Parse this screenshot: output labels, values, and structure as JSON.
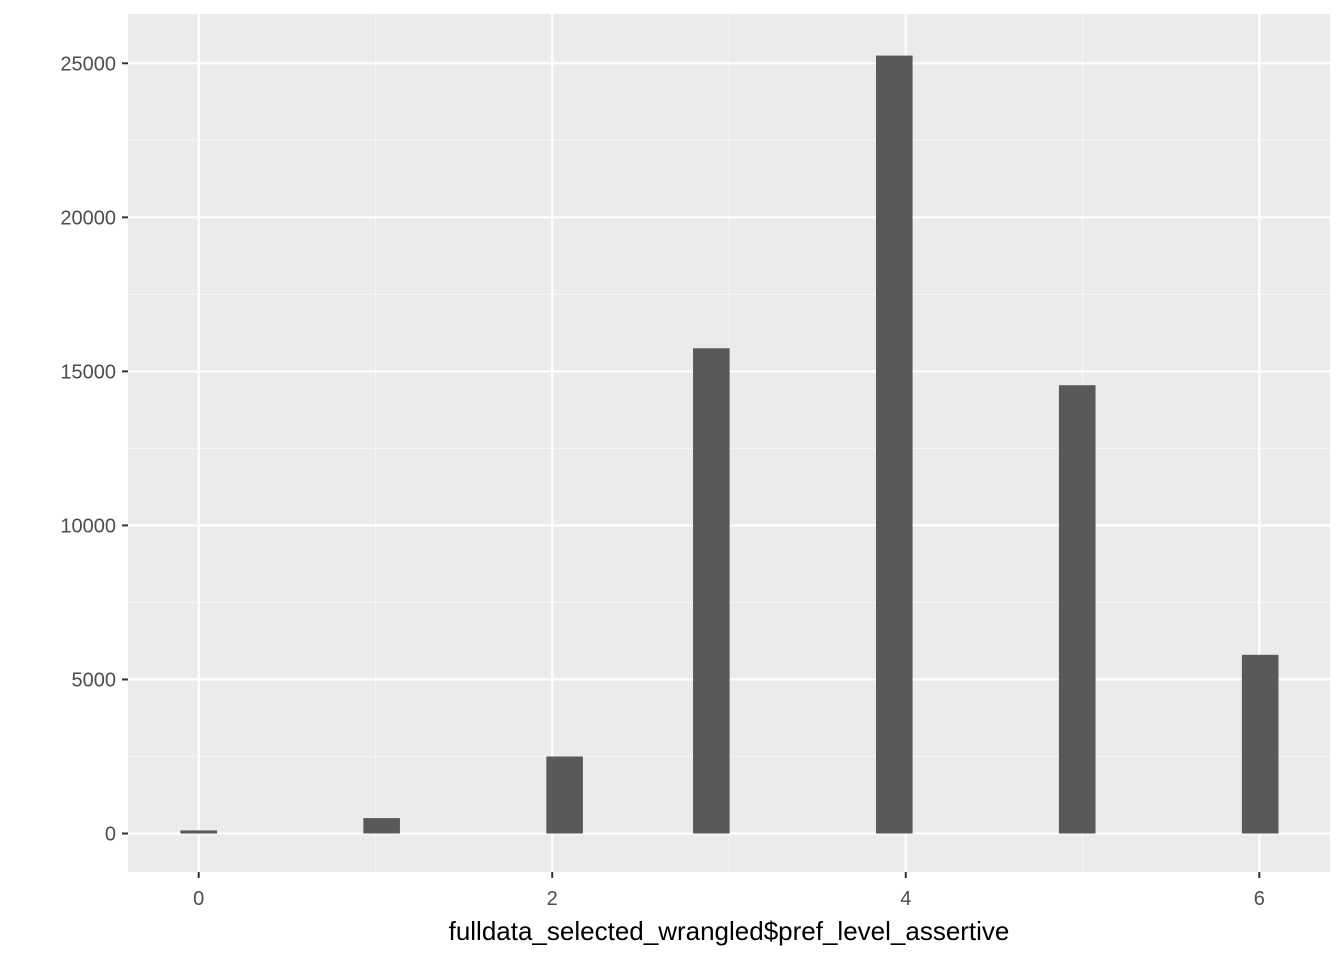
{
  "chart_data": {
    "type": "bar",
    "title": "",
    "xlabel": "fulldata_selected_wrangled$pref_level_assertive",
    "ylabel": "",
    "x_ticks": [
      0,
      2,
      4,
      6
    ],
    "x_tick_labels": [
      "0",
      "2",
      "4",
      "6"
    ],
    "y_ticks": [
      0,
      5000,
      10000,
      15000,
      20000,
      25000
    ],
    "y_tick_labels": [
      "0",
      "5000",
      "10000",
      "15000",
      "20000",
      "25000"
    ],
    "xlim": [
      -0.4,
      6.4
    ],
    "ylim": [
      -1250,
      26600
    ],
    "bar_width": 0.207,
    "bars": [
      {
        "x": 0.0,
        "value": 100
      },
      {
        "x": 1.035,
        "value": 500
      },
      {
        "x": 2.07,
        "value": 2500
      },
      {
        "x": 2.9,
        "value": 15750
      },
      {
        "x": 3.935,
        "value": 25250
      },
      {
        "x": 4.97,
        "value": 14550
      },
      {
        "x": 6.005,
        "value": 5800
      }
    ],
    "grid": true,
    "colors": {
      "panel_background": "#ebebeb",
      "grid_major": "#ffffff",
      "grid_minor": "#f5f5f5",
      "bar_fill": "#595959",
      "tick_label": "#4d4d4d",
      "tick_mark": "#333333"
    }
  }
}
